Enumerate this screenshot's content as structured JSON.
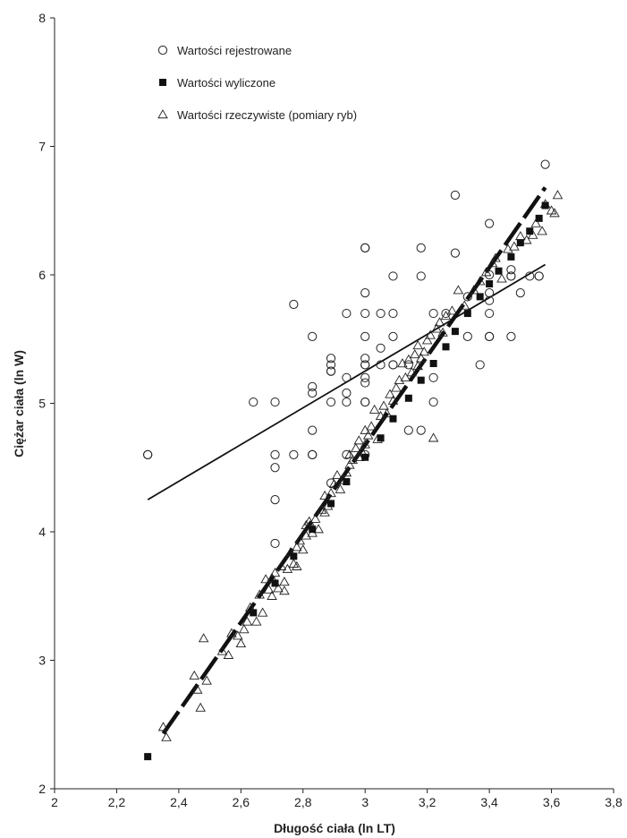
{
  "chart_data": {
    "type": "scatter",
    "title": "",
    "xlabel": "Długość ciała (ln LT)",
    "ylabel": "Ciężar ciała (ln W)",
    "xlim": [
      2,
      3.8
    ],
    "ylim": [
      2,
      8
    ],
    "x_ticks": [
      "2",
      "2,2",
      "2,4",
      "2,6",
      "2,8",
      "3",
      "3,2",
      "3,4",
      "3,6",
      "3,8"
    ],
    "y_ticks": [
      "2",
      "3",
      "4",
      "5",
      "6",
      "7",
      "8"
    ],
    "legend_placement": "top-left",
    "grid": false,
    "series": [
      {
        "name": "Wartości rejestrowane",
        "marker": "circle-open",
        "points": [
          [
            2.3,
            4.6
          ],
          [
            2.3,
            4.6
          ],
          [
            2.64,
            5.01
          ],
          [
            2.71,
            5.01
          ],
          [
            2.71,
            4.6
          ],
          [
            2.71,
            4.5
          ],
          [
            2.71,
            4.25
          ],
          [
            2.71,
            3.91
          ],
          [
            2.77,
            4.6
          ],
          [
            2.77,
            5.77
          ],
          [
            2.83,
            5.52
          ],
          [
            2.83,
            5.13
          ],
          [
            2.83,
            5.08
          ],
          [
            2.83,
            4.79
          ],
          [
            2.83,
            4.6
          ],
          [
            2.83,
            4.6
          ],
          [
            2.89,
            5.35
          ],
          [
            2.89,
            5.3
          ],
          [
            2.89,
            5.25
          ],
          [
            2.89,
            5.25
          ],
          [
            2.89,
            5.01
          ],
          [
            2.89,
            4.38
          ],
          [
            2.94,
            5.7
          ],
          [
            2.94,
            5.2
          ],
          [
            2.94,
            5.08
          ],
          [
            2.94,
            5.01
          ],
          [
            2.94,
            4.6
          ],
          [
            3.0,
            6.21
          ],
          [
            3.0,
            6.21
          ],
          [
            3.0,
            5.86
          ],
          [
            3.0,
            5.7
          ],
          [
            3.0,
            5.52
          ],
          [
            3.0,
            5.35
          ],
          [
            3.0,
            5.3
          ],
          [
            3.0,
            5.3
          ],
          [
            3.0,
            5.2
          ],
          [
            3.0,
            5.16
          ],
          [
            3.0,
            5.01
          ],
          [
            3.0,
            5.01
          ],
          [
            3.0,
            4.6
          ],
          [
            3.05,
            5.7
          ],
          [
            3.05,
            5.43
          ],
          [
            3.05,
            5.3
          ],
          [
            3.09,
            5.99
          ],
          [
            3.09,
            5.7
          ],
          [
            3.09,
            5.52
          ],
          [
            3.09,
            5.3
          ],
          [
            3.09,
            5.3
          ],
          [
            3.14,
            5.3
          ],
          [
            3.14,
            4.79
          ],
          [
            3.18,
            6.21
          ],
          [
            3.18,
            5.99
          ],
          [
            3.18,
            4.79
          ],
          [
            3.22,
            5.7
          ],
          [
            3.22,
            5.2
          ],
          [
            3.22,
            5.01
          ],
          [
            3.26,
            5.7
          ],
          [
            3.29,
            6.62
          ],
          [
            3.29,
            6.17
          ],
          [
            3.33,
            5.83
          ],
          [
            3.33,
            5.52
          ],
          [
            3.37,
            5.3
          ],
          [
            3.4,
            6.4
          ],
          [
            3.4,
            6.0
          ],
          [
            3.4,
            5.86
          ],
          [
            3.4,
            5.8
          ],
          [
            3.4,
            5.7
          ],
          [
            3.4,
            5.52
          ],
          [
            3.4,
            5.52
          ],
          [
            3.47,
            6.04
          ],
          [
            3.47,
            5.99
          ],
          [
            3.47,
            5.99
          ],
          [
            3.47,
            5.52
          ],
          [
            3.5,
            5.86
          ],
          [
            3.53,
            5.99
          ],
          [
            3.56,
            5.99
          ],
          [
            3.56,
            5.99
          ],
          [
            3.58,
            6.86
          ]
        ]
      },
      {
        "name": "Wartości wyliczone",
        "marker": "square-filled",
        "points": [
          [
            2.3,
            2.25
          ],
          [
            2.64,
            3.37
          ],
          [
            2.71,
            3.6
          ],
          [
            2.77,
            3.81
          ],
          [
            2.83,
            4.02
          ],
          [
            2.89,
            4.22
          ],
          [
            2.94,
            4.39
          ],
          [
            3.0,
            4.58
          ],
          [
            3.05,
            4.73
          ],
          [
            3.09,
            4.88
          ],
          [
            3.14,
            5.04
          ],
          [
            3.18,
            5.18
          ],
          [
            3.22,
            5.31
          ],
          [
            3.26,
            5.44
          ],
          [
            3.29,
            5.56
          ],
          [
            3.33,
            5.7
          ],
          [
            3.37,
            5.83
          ],
          [
            3.4,
            5.93
          ],
          [
            3.43,
            6.03
          ],
          [
            3.47,
            6.14
          ],
          [
            3.5,
            6.25
          ],
          [
            3.53,
            6.34
          ],
          [
            3.56,
            6.44
          ],
          [
            3.58,
            6.54
          ]
        ]
      },
      {
        "name": "Wartości rzeczywiste (pomiary ryb)",
        "marker": "triangle-open",
        "points": [
          [
            2.35,
            2.48
          ],
          [
            2.36,
            2.4
          ],
          [
            2.45,
            2.88
          ],
          [
            2.46,
            2.77
          ],
          [
            2.47,
            2.63
          ],
          [
            2.48,
            3.17
          ],
          [
            2.49,
            2.84
          ],
          [
            2.54,
            3.07
          ],
          [
            2.56,
            3.04
          ],
          [
            2.57,
            3.21
          ],
          [
            2.59,
            3.19
          ],
          [
            2.6,
            3.13
          ],
          [
            2.61,
            3.24
          ],
          [
            2.62,
            3.3
          ],
          [
            2.63,
            3.41
          ],
          [
            2.65,
            3.3
          ],
          [
            2.66,
            3.51
          ],
          [
            2.67,
            3.37
          ],
          [
            2.68,
            3.63
          ],
          [
            2.69,
            3.55
          ],
          [
            2.7,
            3.64
          ],
          [
            2.7,
            3.5
          ],
          [
            2.71,
            3.68
          ],
          [
            2.72,
            3.56
          ],
          [
            2.73,
            3.73
          ],
          [
            2.74,
            3.61
          ],
          [
            2.74,
            3.54
          ],
          [
            2.75,
            3.71
          ],
          [
            2.76,
            3.84
          ],
          [
            2.77,
            3.75
          ],
          [
            2.78,
            3.88
          ],
          [
            2.78,
            3.73
          ],
          [
            2.79,
            3.93
          ],
          [
            2.8,
            3.86
          ],
          [
            2.81,
            4.05
          ],
          [
            2.81,
            3.97
          ],
          [
            2.82,
            4.08
          ],
          [
            2.83,
            3.99
          ],
          [
            2.84,
            4.1
          ],
          [
            2.85,
            4.02
          ],
          [
            2.86,
            4.17
          ],
          [
            2.87,
            4.15
          ],
          [
            2.87,
            4.28
          ],
          [
            2.88,
            4.2
          ],
          [
            2.89,
            4.3
          ],
          [
            2.9,
            4.37
          ],
          [
            2.91,
            4.44
          ],
          [
            2.92,
            4.33
          ],
          [
            2.93,
            4.4
          ],
          [
            2.94,
            4.46
          ],
          [
            2.95,
            4.52
          ],
          [
            2.95,
            4.6
          ],
          [
            2.96,
            4.56
          ],
          [
            2.97,
            4.65
          ],
          [
            2.98,
            4.71
          ],
          [
            2.98,
            4.58
          ],
          [
            2.99,
            4.62
          ],
          [
            3.0,
            4.79
          ],
          [
            3.0,
            4.68
          ],
          [
            3.01,
            4.75
          ],
          [
            3.02,
            4.82
          ],
          [
            3.03,
            4.95
          ],
          [
            3.04,
            4.72
          ],
          [
            3.05,
            4.9
          ],
          [
            3.06,
            4.98
          ],
          [
            3.07,
            4.92
          ],
          [
            3.08,
            5.07
          ],
          [
            3.09,
            5.02
          ],
          [
            3.1,
            5.12
          ],
          [
            3.11,
            5.18
          ],
          [
            3.12,
            5.31
          ],
          [
            3.13,
            5.2
          ],
          [
            3.14,
            5.34
          ],
          [
            3.15,
            5.24
          ],
          [
            3.16,
            5.38
          ],
          [
            3.17,
            5.29
          ],
          [
            3.17,
            5.45
          ],
          [
            3.18,
            5.35
          ],
          [
            3.19,
            5.4
          ],
          [
            3.2,
            5.49
          ],
          [
            3.21,
            5.53
          ],
          [
            3.22,
            4.73
          ],
          [
            3.23,
            5.58
          ],
          [
            3.24,
            5.63
          ],
          [
            3.25,
            5.55
          ],
          [
            3.26,
            5.68
          ],
          [
            3.28,
            5.72
          ],
          [
            3.3,
            5.88
          ],
          [
            3.32,
            5.76
          ],
          [
            3.35,
            5.88
          ],
          [
            3.37,
            5.95
          ],
          [
            3.39,
            6.02
          ],
          [
            3.41,
            6.09
          ],
          [
            3.42,
            6.13
          ],
          [
            3.44,
            5.97
          ],
          [
            3.46,
            6.2
          ],
          [
            3.48,
            6.22
          ],
          [
            3.5,
            6.3
          ],
          [
            3.52,
            6.27
          ],
          [
            3.54,
            6.31
          ],
          [
            3.55,
            6.4
          ],
          [
            3.57,
            6.34
          ],
          [
            3.58,
            6.55
          ],
          [
            3.6,
            6.5
          ],
          [
            3.61,
            6.48
          ],
          [
            3.62,
            6.62
          ]
        ]
      }
    ],
    "lines": [
      {
        "name": "Wartości rejestrowane",
        "style": "solid",
        "from": [
          2.3,
          4.25
        ],
        "to": [
          3.58,
          6.08
        ]
      },
      {
        "name": "Wartości wyliczone",
        "style": "dashed",
        "from": [
          2.35,
          2.43
        ],
        "to": [
          3.58,
          6.68
        ]
      }
    ]
  }
}
